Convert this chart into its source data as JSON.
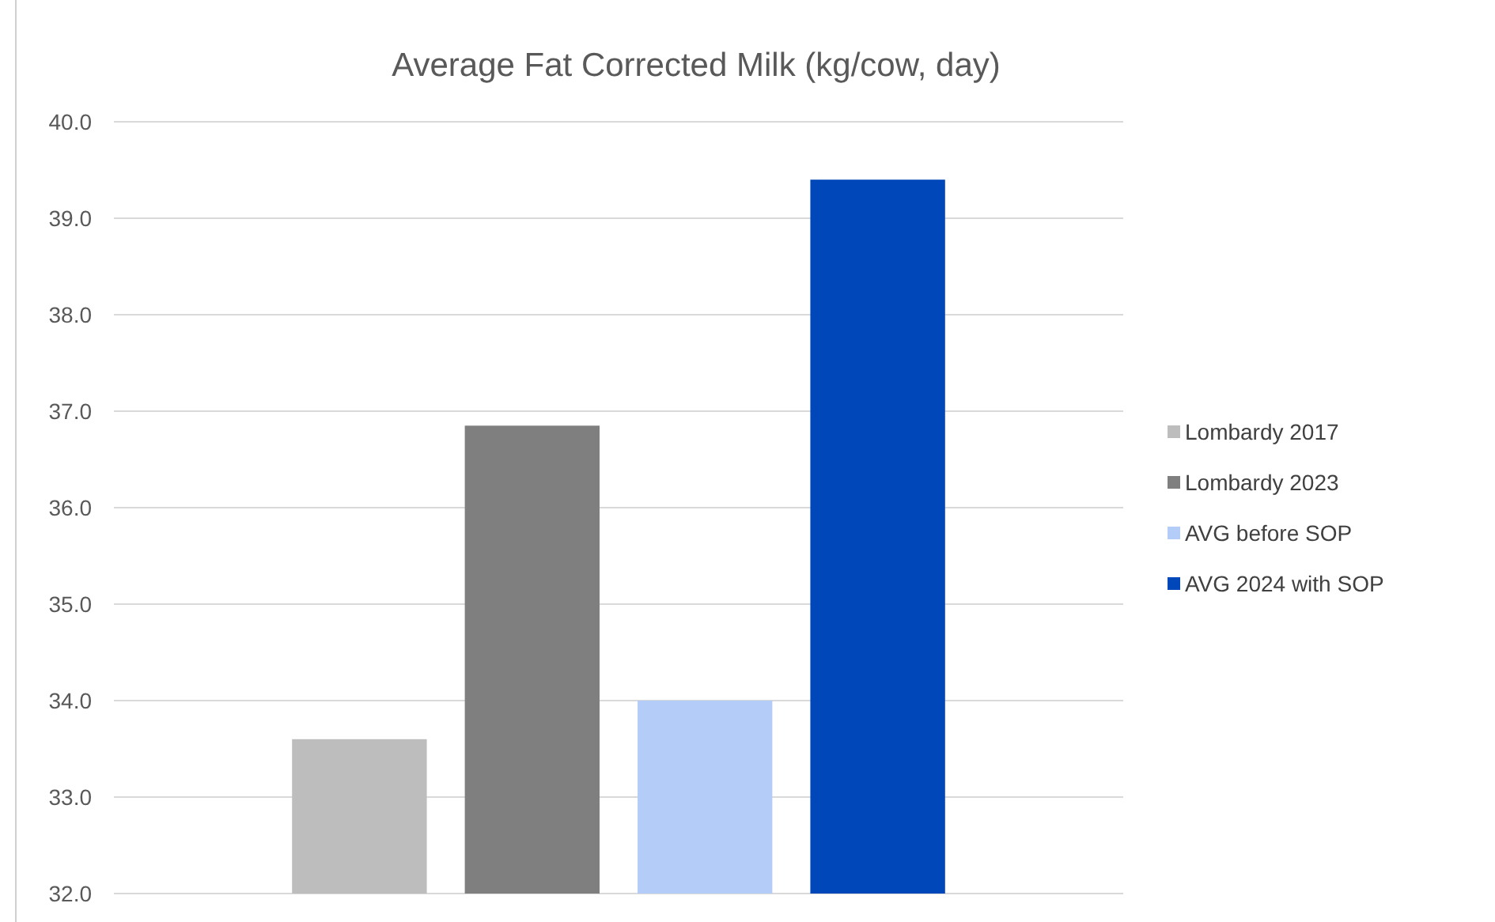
{
  "chart_data": {
    "type": "bar",
    "title": "Average Fat Corrected Milk (kg/cow, day)",
    "categories": [
      null
    ],
    "series": [
      {
        "name": "Lombardy 2017",
        "color": "#bdbdbd",
        "values": [
          33.6
        ]
      },
      {
        "name": "Lombardy 2023",
        "color": "#7f7f7f",
        "values": [
          36.85
        ]
      },
      {
        "name": "AVG before SOP",
        "color": "#b4cdf8",
        "values": [
          34.0
        ]
      },
      {
        "name": "AVG 2024 with SOP",
        "color": "#0047b9",
        "values": [
          39.4
        ]
      }
    ],
    "ylim": [
      32,
      40
    ],
    "yticks": [
      {
        "value": 32,
        "label": "32.0"
      },
      {
        "value": 33,
        "label": "33.0"
      },
      {
        "value": 34,
        "label": "34.0"
      },
      {
        "value": 35,
        "label": "35.0"
      },
      {
        "value": 36,
        "label": "36.0"
      },
      {
        "value": 37,
        "label": "37.0"
      },
      {
        "value": 38,
        "label": "38.0"
      },
      {
        "value": 39,
        "label": "39.0"
      },
      {
        "value": 40,
        "label": "40.0"
      }
    ],
    "grid": "y",
    "legend": "right"
  }
}
